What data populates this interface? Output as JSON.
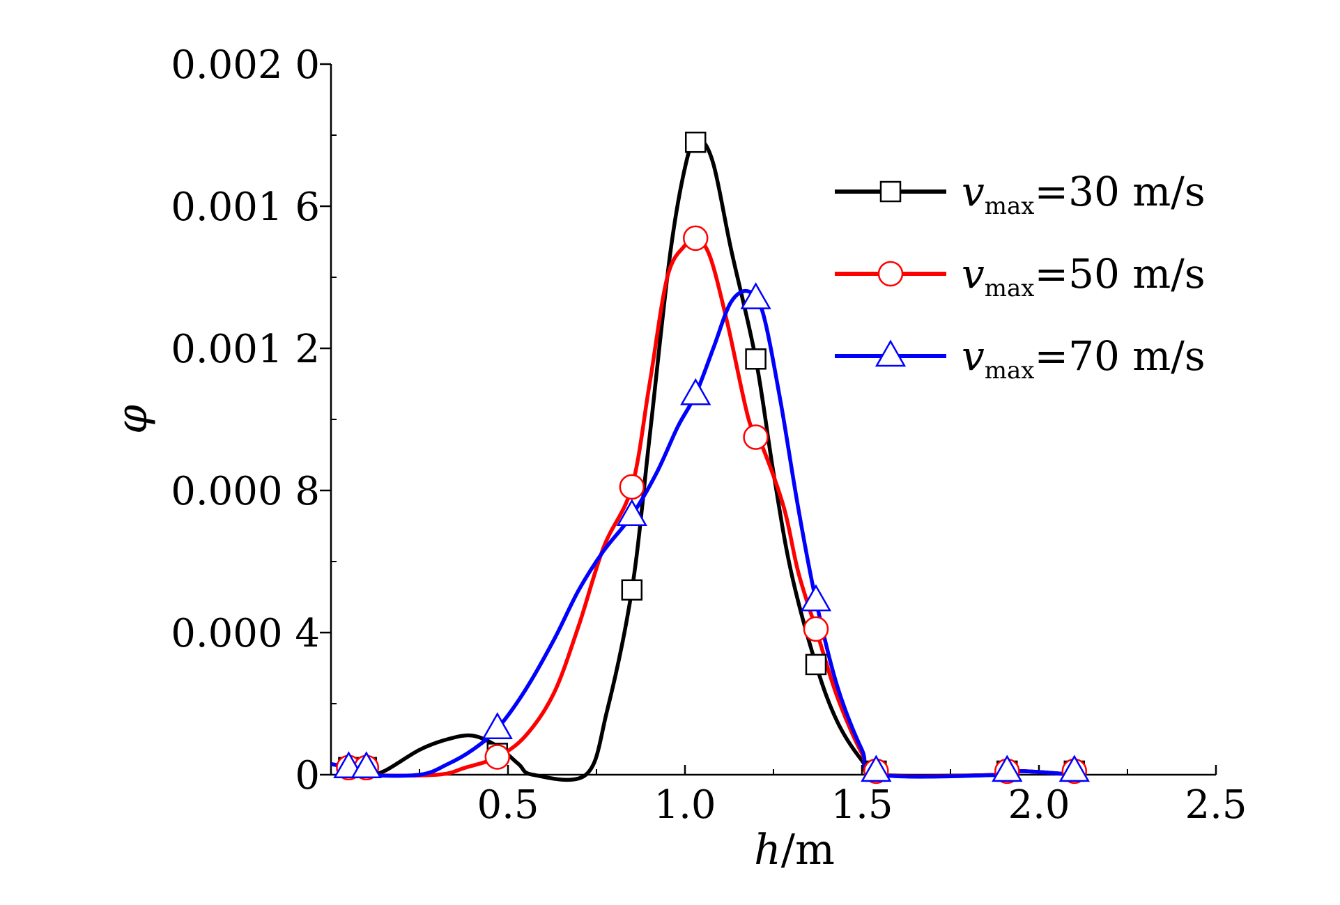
{
  "chart_data": {
    "type": "line",
    "xlabel": {
      "var": "h",
      "unit": "/m"
    },
    "ylabel": "φ",
    "xlim": [
      0,
      2.5
    ],
    "ylim": [
      0,
      0.002
    ],
    "xticks": [
      0.5,
      1.0,
      1.5,
      2.0,
      2.5
    ],
    "xtick_labels": [
      "0.5",
      "1.0",
      "1.5",
      "2.0",
      "2.5"
    ],
    "yticks": [
      0,
      0.0004,
      0.0008,
      0.0012,
      0.0016,
      0.002
    ],
    "ytick_labels": [
      "0",
      "0.000 4",
      "0.000 8",
      "0.001 2",
      "0.001 6",
      "0.002 0"
    ],
    "legend_position": "top-right",
    "grid": false,
    "series": [
      {
        "legend": {
          "var": "v",
          "sub": "max",
          "value": "=30 m/s"
        },
        "color": "#000000",
        "marker": "square",
        "curve": [
          [
            0.0,
            3e-05
          ],
          [
            0.05,
            2e-05
          ],
          [
            0.1,
            0.0
          ],
          [
            0.15,
            1e-05
          ],
          [
            0.25,
            7e-05
          ],
          [
            0.33,
            0.0001
          ],
          [
            0.4,
            0.00011
          ],
          [
            0.47,
            8e-05
          ],
          [
            0.53,
            3e-05
          ],
          [
            0.57,
            0.0
          ],
          [
            0.72,
            0.0
          ],
          [
            0.78,
            0.00018
          ],
          [
            0.85,
            0.00052
          ],
          [
            0.9,
            0.00095
          ],
          [
            0.96,
            0.00148
          ],
          [
            1.01,
            0.00175
          ],
          [
            1.04,
            0.00179
          ],
          [
            1.08,
            0.00172
          ],
          [
            1.13,
            0.00148
          ],
          [
            1.2,
            0.00117
          ],
          [
            1.25,
            0.00085
          ],
          [
            1.3,
            0.00057
          ],
          [
            1.37,
            0.00031
          ],
          [
            1.43,
            0.00015
          ],
          [
            1.5,
            4e-05
          ],
          [
            1.55,
            0.0
          ],
          [
            1.9,
            0.0
          ],
          [
            1.95,
            1e-05
          ],
          [
            2.1,
            0.0
          ]
        ],
        "markers": [
          [
            0.05,
            2e-05
          ],
          [
            0.1,
            2e-05
          ],
          [
            0.47,
            6e-05
          ],
          [
            0.85,
            0.00052
          ],
          [
            1.03,
            0.00178
          ],
          [
            1.2,
            0.00117
          ],
          [
            1.37,
            0.00031
          ],
          [
            1.54,
            1e-05
          ],
          [
            1.91,
            1e-05
          ],
          [
            2.1,
            1e-05
          ]
        ]
      },
      {
        "legend": {
          "var": "v",
          "sub": "max",
          "value": "=50 m/s"
        },
        "color": "#ff0000",
        "marker": "circle",
        "curve": [
          [
            0.0,
            3e-05
          ],
          [
            0.05,
            2e-05
          ],
          [
            0.1,
            0.0
          ],
          [
            0.3,
            0.0
          ],
          [
            0.38,
            2e-05
          ],
          [
            0.47,
            5e-05
          ],
          [
            0.55,
            0.00011
          ],
          [
            0.63,
            0.00023
          ],
          [
            0.7,
            0.00042
          ],
          [
            0.77,
            0.00064
          ],
          [
            0.85,
            0.00081
          ],
          [
            0.9,
            0.0011
          ],
          [
            0.95,
            0.0014
          ],
          [
            1.0,
            0.00149
          ],
          [
            1.03,
            0.00151
          ],
          [
            1.07,
            0.00146
          ],
          [
            1.12,
            0.00127
          ],
          [
            1.18,
            0.001
          ],
          [
            1.22,
            0.00092
          ],
          [
            1.28,
            0.00075
          ],
          [
            1.32,
            0.00057
          ],
          [
            1.37,
            0.00041
          ],
          [
            1.43,
            0.00022
          ],
          [
            1.5,
            6e-05
          ],
          [
            1.55,
            0.0
          ],
          [
            1.9,
            0.0
          ],
          [
            1.95,
            1e-05
          ],
          [
            2.1,
            0.0
          ]
        ],
        "markers": [
          [
            0.05,
            2e-05
          ],
          [
            0.1,
            2e-05
          ],
          [
            0.47,
            5e-05
          ],
          [
            0.85,
            0.00081
          ],
          [
            1.03,
            0.00151
          ],
          [
            1.2,
            0.00095
          ],
          [
            1.37,
            0.00041
          ],
          [
            1.54,
            1e-05
          ],
          [
            1.91,
            1e-05
          ],
          [
            2.1,
            1e-05
          ]
        ]
      },
      {
        "legend": {
          "var": "v",
          "sub": "max",
          "value": "=70 m/s"
        },
        "color": "#0000ff",
        "marker": "triangle",
        "curve": [
          [
            0.0,
            3e-05
          ],
          [
            0.05,
            2e-05
          ],
          [
            0.1,
            0.0
          ],
          [
            0.25,
            0.0
          ],
          [
            0.33,
            3e-05
          ],
          [
            0.4,
            7e-05
          ],
          [
            0.47,
            0.00013
          ],
          [
            0.55,
            0.00024
          ],
          [
            0.63,
            0.00038
          ],
          [
            0.7,
            0.00052
          ],
          [
            0.77,
            0.00063
          ],
          [
            0.85,
            0.00073
          ],
          [
            0.92,
            0.00085
          ],
          [
            0.98,
            0.00098
          ],
          [
            1.03,
            0.00107
          ],
          [
            1.08,
            0.0012
          ],
          [
            1.13,
            0.00133
          ],
          [
            1.18,
            0.00136
          ],
          [
            1.22,
            0.0013
          ],
          [
            1.27,
            0.00105
          ],
          [
            1.32,
            0.00075
          ],
          [
            1.37,
            0.00049
          ],
          [
            1.43,
            0.00025
          ],
          [
            1.5,
            7e-05
          ],
          [
            1.55,
            0.0
          ],
          [
            1.9,
            0.0
          ],
          [
            1.95,
            1e-05
          ],
          [
            2.1,
            0.0
          ]
        ],
        "markers": [
          [
            0.05,
            2e-05
          ],
          [
            0.1,
            2e-05
          ],
          [
            0.47,
            0.00013
          ],
          [
            0.85,
            0.00073
          ],
          [
            1.03,
            0.00107
          ],
          [
            1.2,
            0.00134
          ],
          [
            1.37,
            0.00049
          ],
          [
            1.54,
            1e-05
          ],
          [
            1.91,
            1e-05
          ],
          [
            2.1,
            1e-05
          ]
        ]
      }
    ]
  }
}
